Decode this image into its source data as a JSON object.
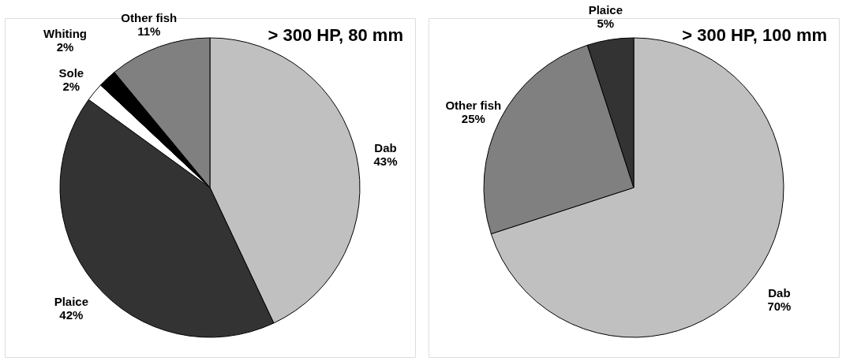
{
  "chart_data": [
    {
      "type": "pie",
      "title": "> 300 HP, 80 mm",
      "categories": [
        "Dab",
        "Plaice",
        "Sole",
        "Whiting",
        "Other fish"
      ],
      "values": [
        43,
        42,
        2,
        2,
        11
      ],
      "colors": [
        "#c0c0c0",
        "#333333",
        "#ffffff",
        "#000000",
        "#808080"
      ],
      "value_labels": [
        "43%",
        "42%",
        "2%",
        "2%",
        "11%"
      ],
      "legend": false
    },
    {
      "type": "pie",
      "title": "> 300 HP, 100 mm",
      "categories": [
        "Dab",
        "Other fish",
        "Plaice"
      ],
      "values": [
        70,
        25,
        5
      ],
      "colors": [
        "#c0c0c0",
        "#808080",
        "#333333"
      ],
      "value_labels": [
        "70%",
        "25%",
        "5%"
      ],
      "legend": false
    }
  ]
}
